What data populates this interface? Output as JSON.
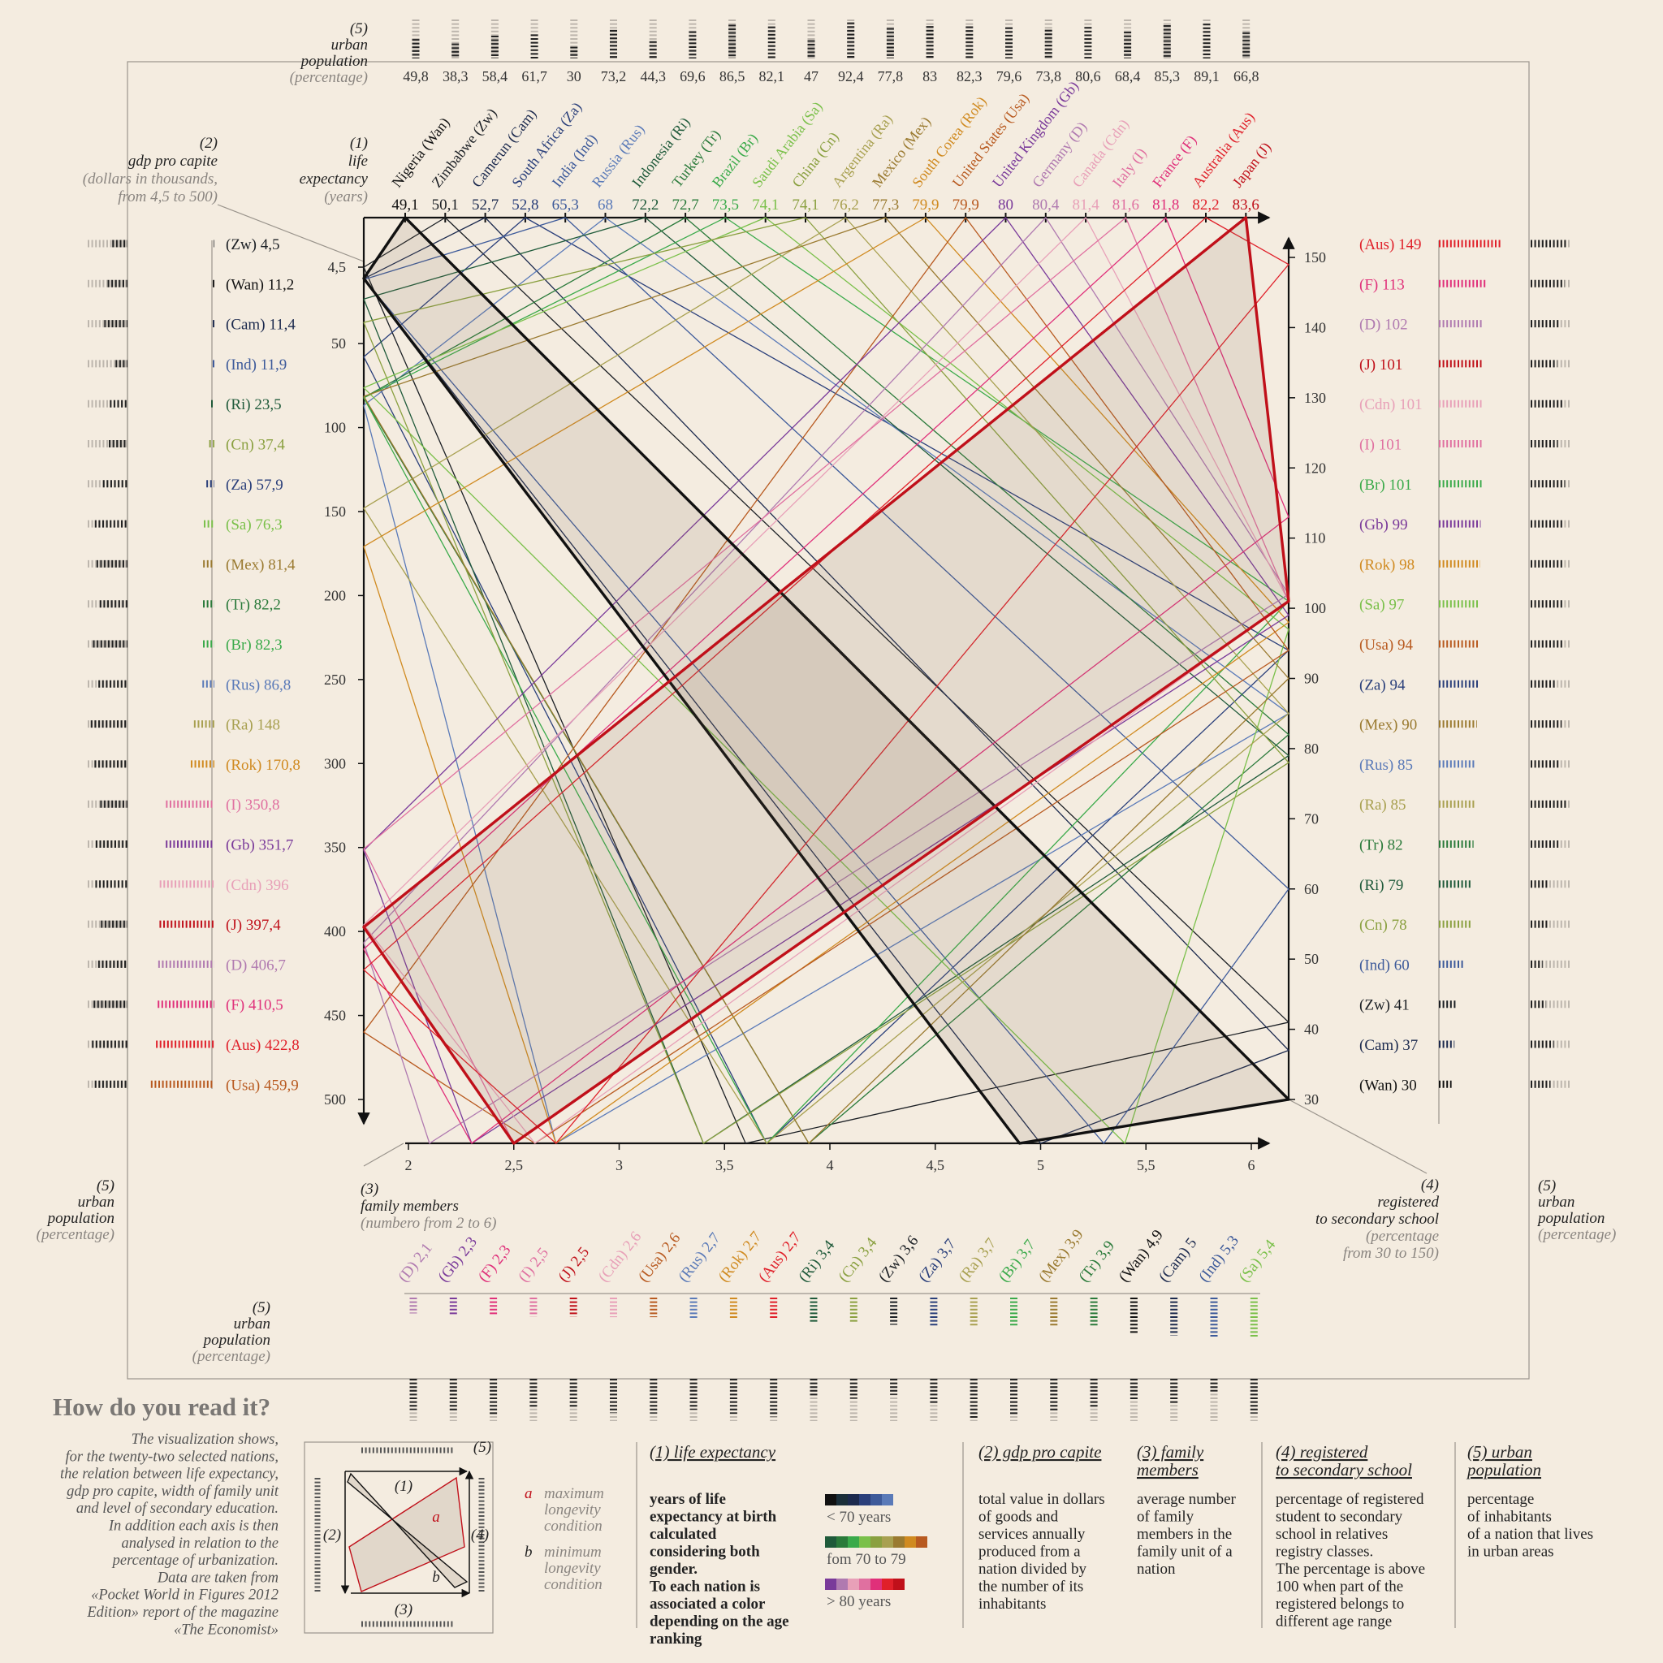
{
  "chart_data": {
    "type": "parallel",
    "nations": [
      {
        "name": "Nigeria (Wan)",
        "code": "(Wan)",
        "color": "#111111"
      },
      {
        "name": "Zimbabwe (Zw)",
        "code": "(Zw)",
        "color": "#1b1f24"
      },
      {
        "name": "Camerun (Cam)",
        "code": "(Cam)",
        "color": "#1c2a4e"
      },
      {
        "name": "South Africa (Za)",
        "code": "(Za)",
        "color": "#2a3f7a"
      },
      {
        "name": "India (Ind)",
        "code": "(Ind)",
        "color": "#3d5a9a"
      },
      {
        "name": "Russia (Rus)",
        "code": "(Rus)",
        "color": "#5a7ab8"
      },
      {
        "name": "Indonesia (Ri)",
        "code": "(Ri)",
        "color": "#1f5a3a"
      },
      {
        "name": "Turkey (Tr)",
        "code": "(Tr)",
        "color": "#2a7a3a"
      },
      {
        "name": "Brazil (Br)",
        "code": "(Br)",
        "color": "#3aaa4a"
      },
      {
        "name": "Saudi Arabia (Sa)",
        "code": "(Sa)",
        "color": "#7ac04a"
      },
      {
        "name": "China (Cn)",
        "code": "(Cn)",
        "color": "#8aa040"
      },
      {
        "name": "Argentina (Ra)",
        "code": "(Ra)",
        "color": "#a8a050"
      },
      {
        "name": "Mexico (Mex)",
        "code": "(Mex)",
        "color": "#9a7a30"
      },
      {
        "name": "South Corea (Rok)",
        "code": "(Rok)",
        "color": "#d08a20"
      },
      {
        "name": "United States (Usa)",
        "code": "(Usa)",
        "color": "#b85a20"
      },
      {
        "name": "United Kingdom (Gb)",
        "code": "(Gb)",
        "color": "#7a3a9a"
      },
      {
        "name": "Germany (D)",
        "code": "(D)",
        "color": "#b07ab0"
      },
      {
        "name": "Canada (Cdn)",
        "code": "(Cdn)",
        "color": "#e8a0b8"
      },
      {
        "name": "Italy (I)",
        "code": "(I)",
        "color": "#e070a0"
      },
      {
        "name": "France (F)",
        "code": "(F)",
        "color": "#e0307a"
      },
      {
        "name": "Australia (Aus)",
        "code": "(Aus)",
        "color": "#e0202a"
      },
      {
        "name": "Japan (J)",
        "code": "(J)",
        "color": "#c0101a"
      }
    ],
    "life_expectancy": {
      "label": [
        "(1)",
        "life",
        "expectancy",
        "(years)"
      ],
      "values": [
        49.1,
        50.1,
        52.7,
        52.8,
        65.3,
        68,
        72.2,
        72.7,
        73.5,
        74.1,
        74.1,
        76.2,
        77.3,
        79.9,
        79.9,
        80,
        80.4,
        81.4,
        81.6,
        81.8,
        82.2,
        83.6
      ],
      "value_labels": [
        "49,1",
        "50,1",
        "52,7",
        "52,8",
        "65,3",
        "68",
        "72,2",
        "72,7",
        "73,5",
        "74,1",
        "74,1",
        "76,2",
        "77,3",
        "79,9",
        "79,9",
        "80",
        "80,4",
        "81,4",
        "81,6",
        "81,8",
        "82,2",
        "83,6"
      ]
    },
    "urban": {
      "label": [
        "(5)",
        "urban",
        "population",
        "(percentage)"
      ],
      "values": [
        49.8,
        38.3,
        58.4,
        61.7,
        30,
        73.2,
        44.3,
        69.6,
        86.5,
        82.1,
        47,
        92.4,
        77.8,
        83,
        82.3,
        79.6,
        73.8,
        80.6,
        68.4,
        85.3,
        89.1,
        66.8
      ],
      "value_labels": [
        "49,8",
        "38,3",
        "58,4",
        "61,7",
        "30",
        "73,2",
        "44,3",
        "69,6",
        "86,5",
        "82,1",
        "47",
        "92,4",
        "77,8",
        "83",
        "82,3",
        "79,6",
        "73,8",
        "80,6",
        "68,4",
        "85,3",
        "89,1",
        "66,8"
      ]
    },
    "gdp": {
      "label": [
        "(2)",
        "gdp pro capite",
        "(dollars in thousands,",
        "from 4,5  to 500)"
      ],
      "codes": [
        "(Zw)",
        "(Wan)",
        "(Cam)",
        "(Ind)",
        "(Ri)",
        "(Cn)",
        "(Za)",
        "(Sa)",
        "(Mex)",
        "(Tr)",
        "(Br)",
        "(Rus)",
        "(Ra)",
        "(Rok)",
        "(I)",
        "(Gb)",
        "(Cdn)",
        "(J)",
        "(D)",
        "(F)",
        "(Aus)",
        "(Usa)"
      ],
      "values": [
        4.5,
        11.2,
        11.4,
        11.9,
        23.5,
        37.4,
        57.9,
        76.3,
        81.4,
        82.2,
        82.3,
        86.8,
        148,
        170.8,
        350.8,
        351.7,
        396,
        397.4,
        406.7,
        410.5,
        422.8,
        459.9
      ],
      "value_labels": [
        "4,5",
        "11,2",
        "11,4",
        "11,9",
        "23,5",
        "37,4",
        "57,9",
        "76,3",
        "81,4",
        "82,2",
        "82,3",
        "86,8",
        "148",
        "170,8",
        "350,8",
        "351,7",
        "396",
        "397,4",
        "406,7",
        "410,5",
        "422,8",
        "459,9"
      ],
      "ylim": [
        4.5,
        500
      ],
      "yticks": [
        {
          "value": 4.5,
          "label": "4,5"
        },
        50,
        100,
        150,
        200,
        250,
        300,
        350,
        400,
        450,
        500
      ]
    },
    "family": {
      "label": [
        "(3)",
        "family members",
        "(numbero from 2 to 6)"
      ],
      "codes": [
        "(D)",
        "(Gb)",
        "(F)",
        "(I)",
        "(J)",
        "(Cdn)",
        "(Usa)",
        "(Rus)",
        "(Rok)",
        "(Aus)",
        "(Ri)",
        "(Cn)",
        "(Zw)",
        "(Za)",
        "(Ra)",
        "(Br)",
        "(Mex)",
        "(Tr)",
        "(Wan)",
        "(Cam)",
        "(Ind)",
        "(Sa)"
      ],
      "values": [
        2.1,
        2.3,
        2.3,
        2.5,
        2.5,
        2.6,
        2.6,
        2.7,
        2.7,
        2.7,
        3.4,
        3.4,
        3.6,
        3.7,
        3.7,
        3.7,
        3.9,
        3.9,
        4.9,
        5,
        5.3,
        5.4
      ],
      "value_labels": [
        "2,1",
        "2,3",
        "2,3",
        "2,5",
        "2,5",
        "2,6",
        "2,6",
        "2,7",
        "2,7",
        "2,7",
        "3,4",
        "3,4",
        "3,6",
        "3,7",
        "3,7",
        "3,7",
        "3,9",
        "3,9",
        "4,9",
        "5",
        "5,3",
        "5,4"
      ],
      "xlim": [
        2,
        6
      ],
      "xticks": [
        2,
        {
          "value": 2.5,
          "label": "2,5"
        },
        3,
        {
          "value": 3.5,
          "label": "3,5"
        },
        4,
        {
          "value": 4.5,
          "label": "4,5"
        },
        5,
        {
          "value": 5.5,
          "label": "5,5"
        },
        6
      ]
    },
    "school": {
      "label": [
        "(4)",
        "registered",
        "to secondary school",
        "(percentage",
        "from 30 to 150)"
      ],
      "codes": [
        "(Aus)",
        "(F)",
        "(D)",
        "(J)",
        "(Cdn)",
        "(I)",
        "(Br)",
        "(Gb)",
        "(Rok)",
        "(Sa)",
        "(Usa)",
        "(Za)",
        "(Mex)",
        "(Rus)",
        "(Ra)",
        "(Tr)",
        "(Ri)",
        "(Cn)",
        "(Ind)",
        "(Zw)",
        "(Cam)",
        "(Wan)"
      ],
      "values": [
        149,
        113,
        102,
        101,
        101,
        101,
        101,
        99,
        98,
        97,
        94,
        94,
        90,
        85,
        85,
        82,
        79,
        78,
        60,
        41,
        37,
        30
      ],
      "ylim": [
        30,
        150
      ],
      "yticks": [
        30,
        40,
        50,
        60,
        70,
        80,
        90,
        100,
        110,
        120,
        130,
        140,
        150
      ]
    }
  },
  "guide": {
    "title": "How do you read it?",
    "text": [
      "The visualization shows,",
      "for the twenty-two selected nations,",
      "the relation between life expectancy,",
      "gdp pro capite, width of family unit",
      "and level of secondary education.",
      "In addition each axis is then",
      "analysed in relation to the",
      "percentage of urbanization.",
      "Data are taken from",
      "«Pocket World in Figures 2012",
      "Edition» report of the magazine",
      "«The Economist»"
    ],
    "notes": [
      {
        "letter": "a",
        "text": [
          "maximum",
          "longevity",
          "condition"
        ]
      },
      {
        "letter": "b",
        "text": [
          "minimum",
          "longevity",
          "condition"
        ]
      }
    ],
    "definitions": [
      {
        "title": [
          "(1) life expectancy"
        ],
        "text": [
          "years of life",
          "expectancy at birth",
          "calculated",
          "considering both",
          "gender.",
          "To each nation is",
          "associated a color",
          "depending on the age",
          "ranking"
        ]
      },
      {
        "title": [
          "(2) gdp pro capite"
        ],
        "text": [
          "total value in dollars",
          "of goods and",
          "services annually",
          "produced from a",
          "nation divided by",
          "the number of its",
          "inhabitants"
        ]
      },
      {
        "title": [
          "(3) family",
          "members"
        ],
        "text": [
          "average number",
          "of family",
          "members in the",
          "family unit of a",
          "nation"
        ]
      },
      {
        "title": [
          "(4) registered",
          "to secondary school"
        ],
        "text": [
          "percentage of registered",
          "student to secondary",
          "school in relatives",
          "registry classes.",
          "The percentage is above",
          "100 when part of the",
          "registered belongs to",
          "different age range"
        ]
      },
      {
        "title": [
          "(5) urban",
          "population"
        ],
        "text": [
          "percentage",
          "of inhabitants",
          "of a nation that lives",
          "in urban areas"
        ]
      }
    ],
    "color_scale": [
      {
        "label": "< 70 years",
        "colors": [
          "#111111",
          "#1b2f3a",
          "#1c2a4e",
          "#2a3f7a",
          "#3d5a9a",
          "#5a7ab8"
        ]
      },
      {
        "label": "fom 70 to 79",
        "colors": [
          "#1f5a3a",
          "#2a7a3a",
          "#3aaa4a",
          "#7ac04a",
          "#8aa040",
          "#a8a050",
          "#9a7a30",
          "#d08a20",
          "#b85a20"
        ]
      },
      {
        "label": "> 80 years",
        "colors": [
          "#7a3a9a",
          "#b07ab0",
          "#e8a0b8",
          "#e070a0",
          "#e0307a",
          "#e0202a",
          "#c0101a"
        ]
      }
    ]
  }
}
